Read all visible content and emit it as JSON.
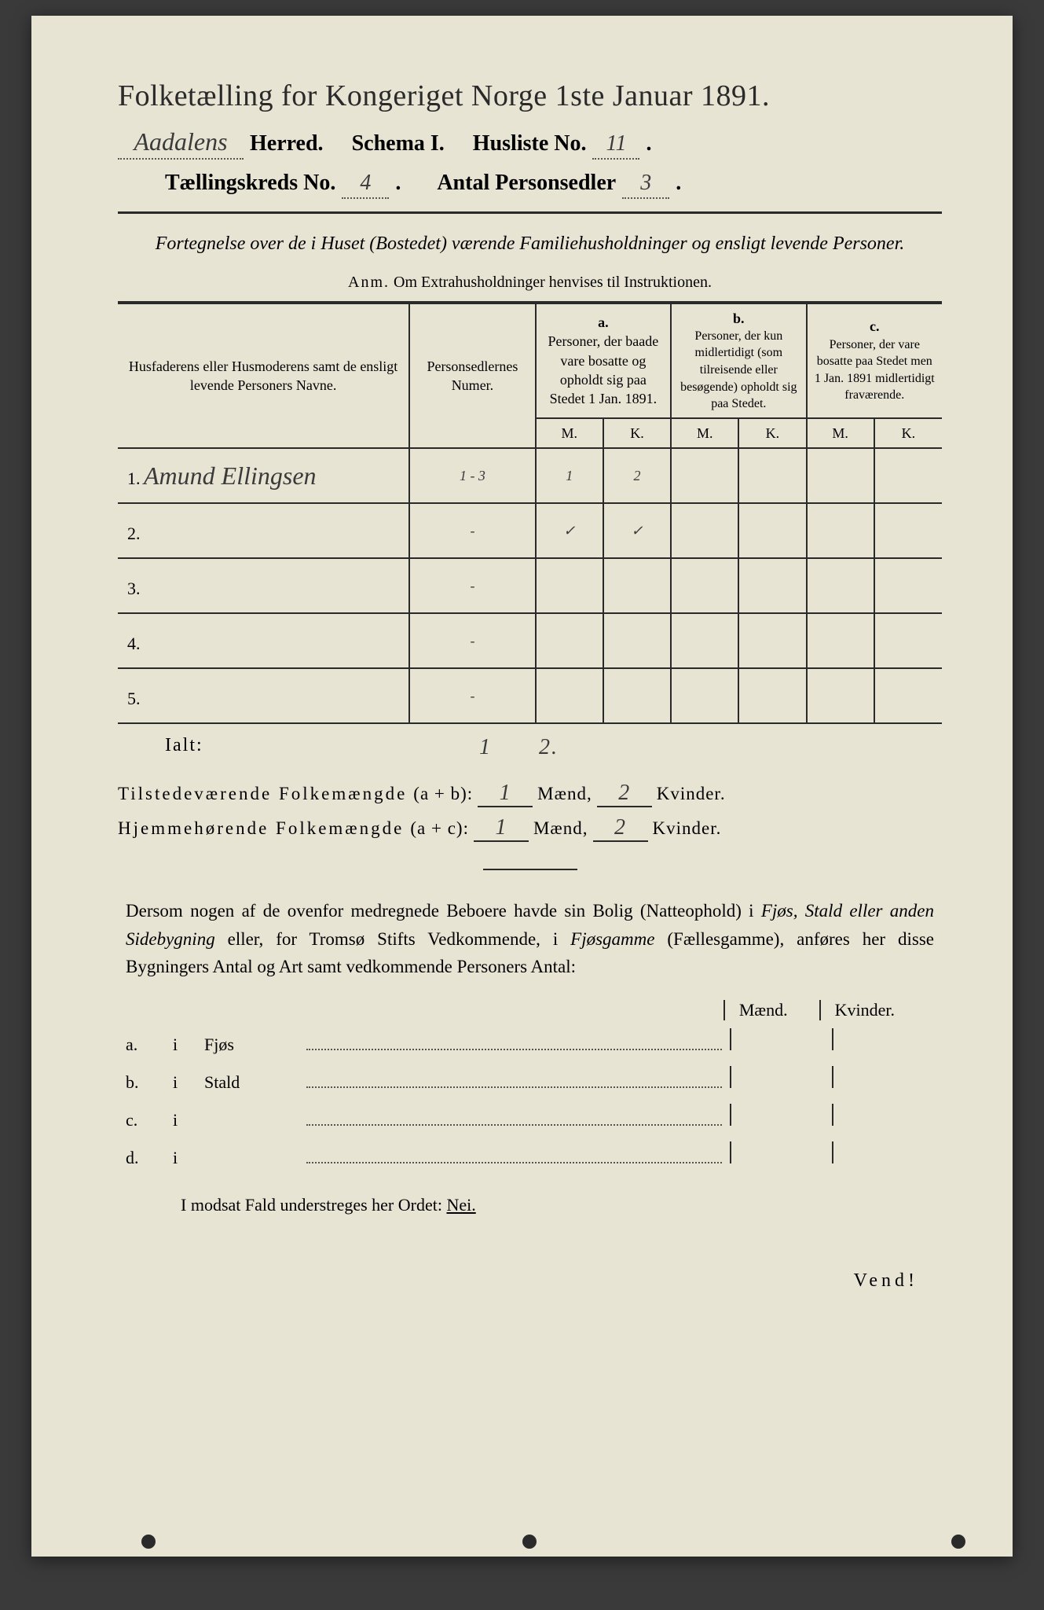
{
  "title": "Folketælling for Kongeriget Norge 1ste Januar 1891.",
  "header": {
    "herred_value": "Aadalens",
    "herred_label": "Herred.",
    "schema_label": "Schema I.",
    "husliste_label": "Husliste No.",
    "husliste_value": "11",
    "kreds_label": "Tællingskreds No.",
    "kreds_value": "4",
    "antal_label": "Antal Personsedler",
    "antal_value": "3"
  },
  "subtitle": "Fortegnelse over de i Huset (Bostedet) værende Familiehusholdninger og ensligt levende Personer.",
  "anm": {
    "prefix": "Anm.",
    "text": "Om Extrahusholdninger henvises til Instruktionen."
  },
  "table": {
    "col1": "Husfaderens eller Husmoderens samt de ensligt levende Personers Navne.",
    "col2": "Personsedlernes Numer.",
    "a_label": "a.",
    "a_text": "Personer, der baade vare bosatte og opholdt sig paa Stedet 1 Jan. 1891.",
    "b_label": "b.",
    "b_text": "Personer, der kun midlertidigt (som tilreisende eller besøgende) opholdt sig paa Stedet.",
    "c_label": "c.",
    "c_text": "Personer, der vare bosatte paa Stedet men 1 Jan. 1891 midlertidigt fraværende.",
    "m": "M.",
    "k": "K.",
    "rows": [
      {
        "n": "1.",
        "name": "Amund Ellingsen",
        "num": "1 - 3",
        "am": "1",
        "ak": "2"
      },
      {
        "n": "2.",
        "name": "",
        "num": "-",
        "am": "✓",
        "ak": "✓"
      },
      {
        "n": "3.",
        "name": "",
        "num": "-",
        "am": "",
        "ak": ""
      },
      {
        "n": "4.",
        "name": "",
        "num": "-",
        "am": "",
        "ak": ""
      },
      {
        "n": "5.",
        "name": "",
        "num": "-",
        "am": "",
        "ak": ""
      }
    ]
  },
  "ialt": {
    "label": "Ialt:",
    "m": "1",
    "k": "2."
  },
  "summary": {
    "line1_label": "Tilstedeværende Folkemængde",
    "line1_formula": "(a + b):",
    "line2_label": "Hjemmehørende Folkemængde",
    "line2_formula": "(a + c):",
    "maend": "Mænd,",
    "kvinder": "Kvinder.",
    "v1m": "1",
    "v1k": "2",
    "v2m": "1",
    "v2k": "2"
  },
  "para": {
    "text1": "Dersom nogen af de ovenfor medregnede Beboere havde sin Bolig (Natteophold) i ",
    "it1": "Fjøs, Stald eller anden Sidebygning",
    "text2": " eller, for Tromsø Stifts Vedkommende, i ",
    "it2": "Fjøsgamme",
    "text3": " (Fællesgamme), anføres her disse Bygningers Antal og Art samt vedkommende Personers Antal:"
  },
  "mk": {
    "m": "Mænd.",
    "k": "Kvinder."
  },
  "abcd": [
    {
      "key": "a.",
      "i": "i",
      "label": "Fjøs"
    },
    {
      "key": "b.",
      "i": "i",
      "label": "Stald"
    },
    {
      "key": "c.",
      "i": "i",
      "label": ""
    },
    {
      "key": "d.",
      "i": "i",
      "label": ""
    }
  ],
  "footer": {
    "text": "I modsat Fald understreges her Ordet: ",
    "nei": "Nei."
  },
  "vend": "Vend!"
}
